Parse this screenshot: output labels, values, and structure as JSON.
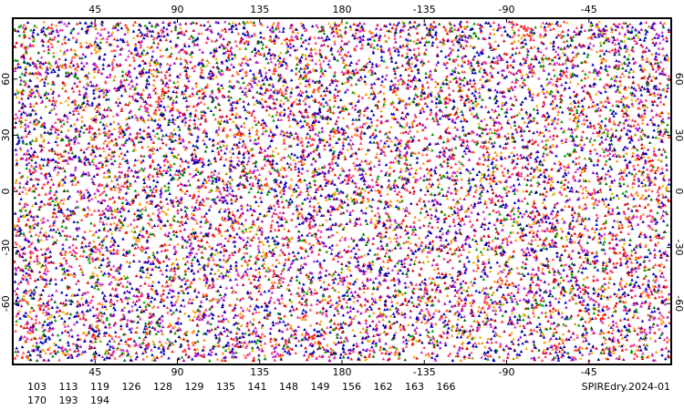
{
  "chart_data": {
    "type": "scatter",
    "label": "SPIREdry.2024-01",
    "xlim": [
      0,
      360
    ],
    "xticks": [
      45,
      90,
      135,
      180,
      {
        "value": 225,
        "label": "-135"
      },
      {
        "value": 270,
        "label": "-90"
      },
      {
        "value": 315,
        "label": "-45"
      }
    ],
    "ylim": [
      -92.5,
      92.5
    ],
    "yticks": [
      -60,
      -30,
      0,
      30,
      60
    ],
    "series": [
      {
        "name": "103",
        "color": "#ff9900"
      },
      {
        "name": "113",
        "color": "#e6b800"
      },
      {
        "name": "119",
        "color": "#ff5050"
      },
      {
        "name": "126",
        "color": "#dd0000"
      },
      {
        "name": "128",
        "color": "#ff8c1a"
      },
      {
        "name": "129",
        "color": "#ff3366"
      },
      {
        "name": "135",
        "color": "#0000cc"
      },
      {
        "name": "141",
        "color": "#9900cc"
      },
      {
        "name": "148",
        "color": "#999900"
      },
      {
        "name": "149",
        "color": "#009900"
      },
      {
        "name": "156",
        "color": "#ff2200"
      },
      {
        "name": "162",
        "color": "#ffaa33"
      },
      {
        "name": "163",
        "color": "#cc33cc"
      },
      {
        "name": "166",
        "color": "#f0b000"
      },
      {
        "name": "170",
        "color": "#b00030"
      },
      {
        "name": "193",
        "color": "#006600"
      },
      {
        "name": "194",
        "color": "#000099"
      }
    ]
  }
}
